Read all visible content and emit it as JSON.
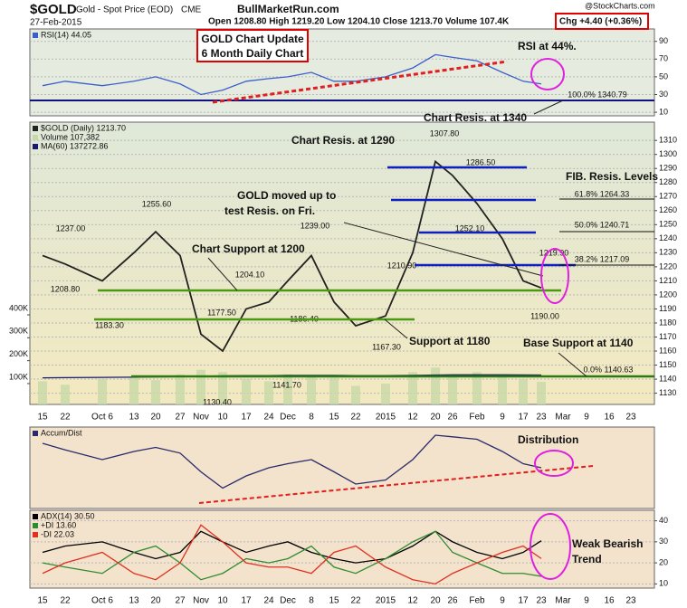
{
  "header": {
    "symbol": "$GOLD",
    "name": "Gold - Spot Price (EOD)",
    "exchange": "CME",
    "date": "27-Feb-2015",
    "site": "BullMarketRun.com",
    "quote": "Open 1208.80  High 1219.20  Low 1204.10  Close 1213.70  Volume 107.4K",
    "change": "Chg +4.40 (+0.36%)",
    "source": "@StockCharts.com"
  },
  "annotations": [
    "GOLD Chart Update",
    "6 Month Daily Chart",
    "RSI at 44%.",
    "Chart Resis. at 1340",
    "Chart Resis. at 1290",
    "FIB. Resis. Levels",
    "GOLD moved up to",
    "test Resis. on Fri.",
    "Chart Support at 1200",
    "Support at 1180",
    "Base Support at 1140",
    "Distribution",
    "Weak Bearish",
    "Trend"
  ],
  "price_labels": [
    "1307.80",
    "1286.50",
    "1255.60",
    "1237.00",
    "1239.00",
    "1252.10",
    "1219.90",
    "1210.90",
    "1204.10",
    "1208.80",
    "1183.30",
    "1177.50",
    "1186.40",
    "1167.30",
    "1190.00",
    "1141.70",
    "1130.40",
    "100.0% 1340.79",
    "61.8% 1264.33",
    "50.0% 1240.71",
    "38.2% 1217.09",
    "0.0% 1140.63"
  ],
  "chart_data": [
    {
      "type": "line",
      "ylim": [
        6,
        104
      ],
      "yticks": [
        10,
        30,
        50,
        70,
        90
      ],
      "grid": true,
      "series": [
        {
          "name": "RSI(14) 44.05",
          "color": "#3a5fcd",
          "values": [
            40,
            45,
            40,
            45,
            50,
            42,
            30,
            35,
            45,
            48,
            50,
            55,
            45,
            45,
            50,
            60,
            75,
            72,
            68,
            55,
            45,
            42,
            null,
            null,
            null,
            null
          ]
        }
      ]
    },
    {
      "type": "line",
      "ylim": [
        1122,
        1323
      ],
      "yticks": [
        1130,
        1140,
        1150,
        1160,
        1170,
        1180,
        1190,
        1200,
        1210,
        1220,
        1230,
        1240,
        1250,
        1260,
        1270,
        1280,
        1290,
        1300,
        1310
      ],
      "grid": true,
      "y2lim": [
        9000,
        1241000
      ],
      "y2ticks": [
        {
          "value": 100000,
          "label": "100K"
        },
        {
          "value": 200000,
          "label": "200K"
        },
        {
          "value": 300000,
          "label": "300K"
        },
        {
          "value": 400000,
          "label": "400K"
        }
      ],
      "categories": [
        "15",
        "22",
        "Oct 6",
        "13",
        "20",
        "27",
        "Nov",
        "10",
        "17",
        "24",
        "Dec",
        "8",
        "15",
        "22",
        "2015",
        "12",
        "20",
        "26",
        "Feb",
        "9",
        "17",
        "23",
        "Mar",
        "9",
        "16",
        "23"
      ],
      "series": [
        {
          "name": "$GOLD (Daily) 1213.70",
          "color": "#222222",
          "values": [
            1228,
            1222,
            1210,
            1230,
            1245,
            1228,
            1172,
            1160,
            1190,
            1195,
            1210,
            1228,
            1195,
            1178,
            1185,
            1230,
            1295,
            1285,
            1265,
            1240,
            1210,
            1205,
            null,
            null,
            null,
            null
          ]
        },
        {
          "name": "Volume 107,382",
          "color": "#c8d8a8",
          "type": "bar",
          "axis": "y2",
          "values": [
            110000,
            95000,
            120000,
            130000,
            115000,
            140000,
            160000,
            150000,
            120000,
            110000,
            140000,
            130000,
            125000,
            90000,
            100000,
            150000,
            170000,
            140000,
            150000,
            130000,
            120000,
            107382,
            null,
            null,
            null,
            null
          ]
        },
        {
          "name": "MA(60) 137272.86",
          "color": "#1a1a6e",
          "axis": "y2",
          "values": [
            125000,
            126000,
            127000,
            128000,
            129000,
            130000,
            132000,
            134000,
            135000,
            135000,
            136000,
            136000,
            136000,
            135000,
            135000,
            136000,
            137000,
            138000,
            138000,
            138000,
            137500,
            137272.86,
            null,
            null,
            null,
            null
          ]
        }
      ]
    },
    {
      "type": "line",
      "ylim": [
        0,
        100
      ],
      "series": [
        {
          "name": "Accum/Dist",
          "color": "#2a2a6a",
          "values": [
            80,
            72,
            60,
            70,
            75,
            68,
            45,
            25,
            40,
            50,
            55,
            60,
            45,
            30,
            35,
            60,
            90,
            88,
            85,
            70,
            55,
            50,
            null,
            null,
            null,
            null
          ]
        }
      ]
    },
    {
      "type": "line",
      "ylim": [
        8,
        45
      ],
      "yticks": [
        10,
        20,
        30,
        40
      ],
      "grid": true,
      "categories": [
        "15",
        "22",
        "Oct 6",
        "13",
        "20",
        "27",
        "Nov",
        "10",
        "17",
        "24",
        "Dec",
        "8",
        "15",
        "22",
        "2015",
        "12",
        "20",
        "26",
        "Feb",
        "9",
        "17",
        "23",
        "Mar",
        "9",
        "16",
        "23"
      ],
      "series": [
        {
          "name": "ADX(14) 30.50",
          "color": "#000000",
          "values": [
            25,
            28,
            30,
            25,
            22,
            25,
            35,
            30,
            25,
            28,
            30,
            25,
            22,
            20,
            22,
            28,
            35,
            30,
            25,
            22,
            25,
            30.5,
            null,
            null,
            null,
            null
          ]
        },
        {
          "name": "+DI 13.60",
          "color": "#2e8b2e",
          "values": [
            20,
            18,
            15,
            25,
            28,
            20,
            12,
            15,
            22,
            20,
            22,
            28,
            18,
            15,
            22,
            30,
            35,
            25,
            20,
            15,
            15,
            13.6,
            null,
            null,
            null,
            null
          ]
        },
        {
          "name": "-DI 22.03",
          "color": "#e03020",
          "values": [
            15,
            20,
            25,
            15,
            12,
            20,
            38,
            30,
            20,
            18,
            18,
            15,
            25,
            28,
            18,
            12,
            10,
            15,
            20,
            25,
            28,
            22.03,
            null,
            null,
            null,
            null
          ]
        }
      ]
    }
  ]
}
